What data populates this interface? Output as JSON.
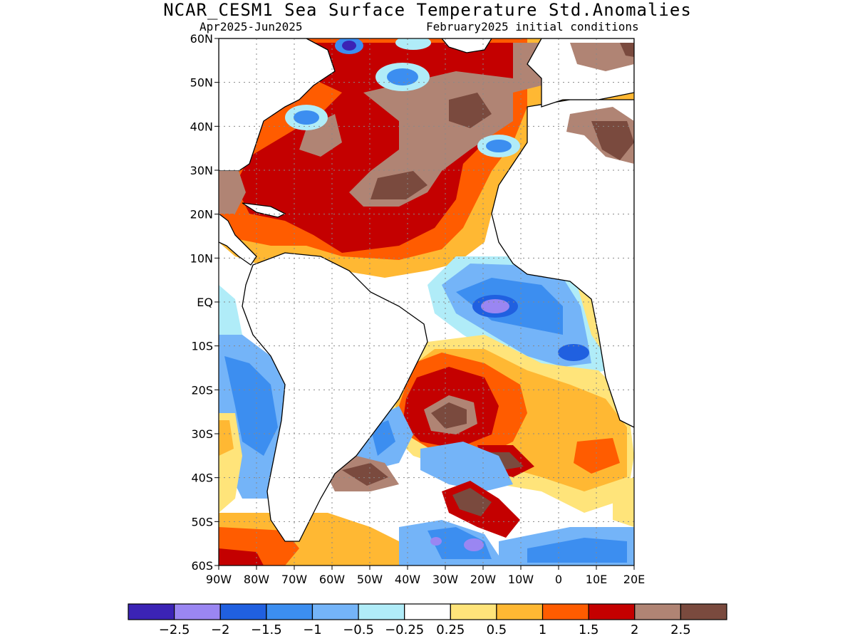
{
  "header": {
    "title": "NCAR_CESM1 Sea Surface Temperature Std.Anomalies",
    "season": "Apr2025-Jun2025",
    "init": "February2025 initial conditions"
  },
  "map": {
    "lon_range": [
      -90,
      20
    ],
    "lat_range": [
      -60,
      60
    ],
    "lat_ticks": [
      {
        "v": 60,
        "label": "60N"
      },
      {
        "v": 50,
        "label": "50N"
      },
      {
        "v": 40,
        "label": "40N"
      },
      {
        "v": 30,
        "label": "30N"
      },
      {
        "v": 20,
        "label": "20N"
      },
      {
        "v": 10,
        "label": "10N"
      },
      {
        "v": 0,
        "label": "EQ"
      },
      {
        "v": -10,
        "label": "10S"
      },
      {
        "v": -20,
        "label": "20S"
      },
      {
        "v": -30,
        "label": "30S"
      },
      {
        "v": -40,
        "label": "40S"
      },
      {
        "v": -50,
        "label": "50S"
      },
      {
        "v": -60,
        "label": "60S"
      }
    ],
    "lon_ticks": [
      {
        "v": -90,
        "label": "90W"
      },
      {
        "v": -80,
        "label": "80W"
      },
      {
        "v": -70,
        "label": "70W"
      },
      {
        "v": -60,
        "label": "60W"
      },
      {
        "v": -50,
        "label": "50W"
      },
      {
        "v": -40,
        "label": "40W"
      },
      {
        "v": -30,
        "label": "30W"
      },
      {
        "v": -20,
        "label": "20W"
      },
      {
        "v": -10,
        "label": "10W"
      },
      {
        "v": 0,
        "label": "0"
      },
      {
        "v": 10,
        "label": "10E"
      },
      {
        "v": 20,
        "label": "20E"
      }
    ],
    "grid": "dotted"
  },
  "colorbar": {
    "colors": [
      "#3b23b5",
      "#9a86f2",
      "#2060e0",
      "#3c8ef0",
      "#74b4f8",
      "#b0ecf8",
      "#ffffff",
      "#ffe47a",
      "#ffb833",
      "#ff5c00",
      "#c40000",
      "#b08474",
      "#7a4a3e"
    ],
    "labels": [
      "−2.5",
      "−2",
      "−1.5",
      "−1",
      "−0.5",
      "−0.25",
      "0.25",
      "0.5",
      "1",
      "1.5",
      "2",
      "2.5"
    ]
  }
}
